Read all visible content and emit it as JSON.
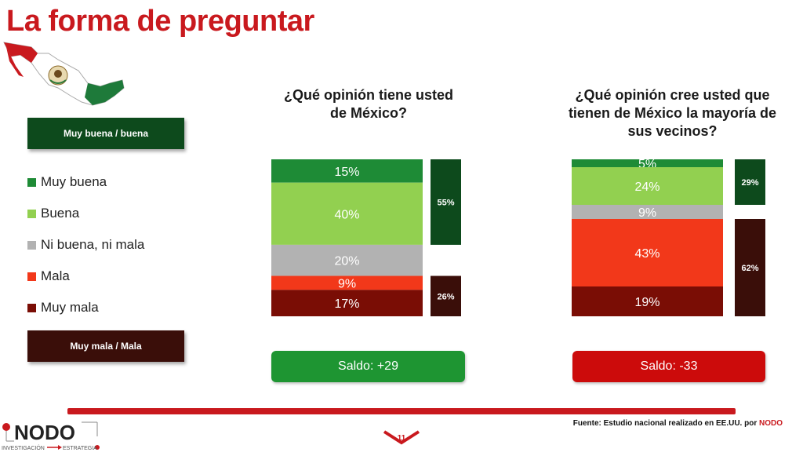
{
  "title": "La forma de preguntar",
  "boxes": {
    "top": "Muy buena / buena",
    "bottom": "Muy mala / Mala"
  },
  "legend": [
    {
      "label": "Muy buena",
      "color": "#1e8b36"
    },
    {
      "label": "Buena",
      "color": "#92d050"
    },
    {
      "label": "Ni buena, ni mala",
      "color": "#b2b2b2"
    },
    {
      "label": "Mala",
      "color": "#f2381a"
    },
    {
      "label": "Muy mala",
      "color": "#7a0d05"
    }
  ],
  "questions": [
    "¿Qué opinión tiene usted de México?",
    "¿Qué opinión cree usted que tienen de México la mayoría de sus vecinos?"
  ],
  "saldo": [
    "Saldo: +29",
    "Saldo: -33"
  ],
  "source": {
    "text": "Fuente: Estudio nacional realizado en EE.UU. por ",
    "brand": "NODO"
  },
  "logo": {
    "name": "NODO",
    "left": "INVESTIGACIÓN",
    "right": "ESTRATEGIA"
  },
  "page_number": "11",
  "colors": {
    "accent": "#c9191e",
    "positive_box": "#0d4a1c",
    "negative_box": "#3a0e09"
  },
  "chart_data": [
    {
      "type": "bar",
      "stacked": true,
      "categories": [
        "¿Qué opinión tiene usted de México?"
      ],
      "series": [
        {
          "name": "Muy buena",
          "values": [
            15
          ]
        },
        {
          "name": "Buena",
          "values": [
            40
          ]
        },
        {
          "name": "Ni buena, ni mala",
          "values": [
            20
          ]
        },
        {
          "name": "Mala",
          "values": [
            9
          ]
        },
        {
          "name": "Muy mala",
          "values": [
            17
          ]
        }
      ],
      "data_labels": [
        "15%",
        "40%",
        "20%",
        "9%",
        "17%"
      ],
      "summary": {
        "positive": 55,
        "positive_label": "55%",
        "negative": 26,
        "negative_label": "26%"
      }
    },
    {
      "type": "bar",
      "stacked": true,
      "categories": [
        "¿Qué opinión cree usted que tienen de México la mayoría de sus vecinos?"
      ],
      "series": [
        {
          "name": "Muy buena",
          "values": [
            5
          ]
        },
        {
          "name": "Buena",
          "values": [
            24
          ]
        },
        {
          "name": "Ni buena, ni mala",
          "values": [
            9
          ]
        },
        {
          "name": "Mala",
          "values": [
            43
          ]
        },
        {
          "name": "Muy mala",
          "values": [
            19
          ]
        }
      ],
      "data_labels": [
        "5%",
        "24%",
        "9%",
        "43%",
        "19%"
      ],
      "summary": {
        "positive": 29,
        "positive_label": "29%",
        "negative": 62,
        "negative_label": "62%"
      }
    }
  ]
}
